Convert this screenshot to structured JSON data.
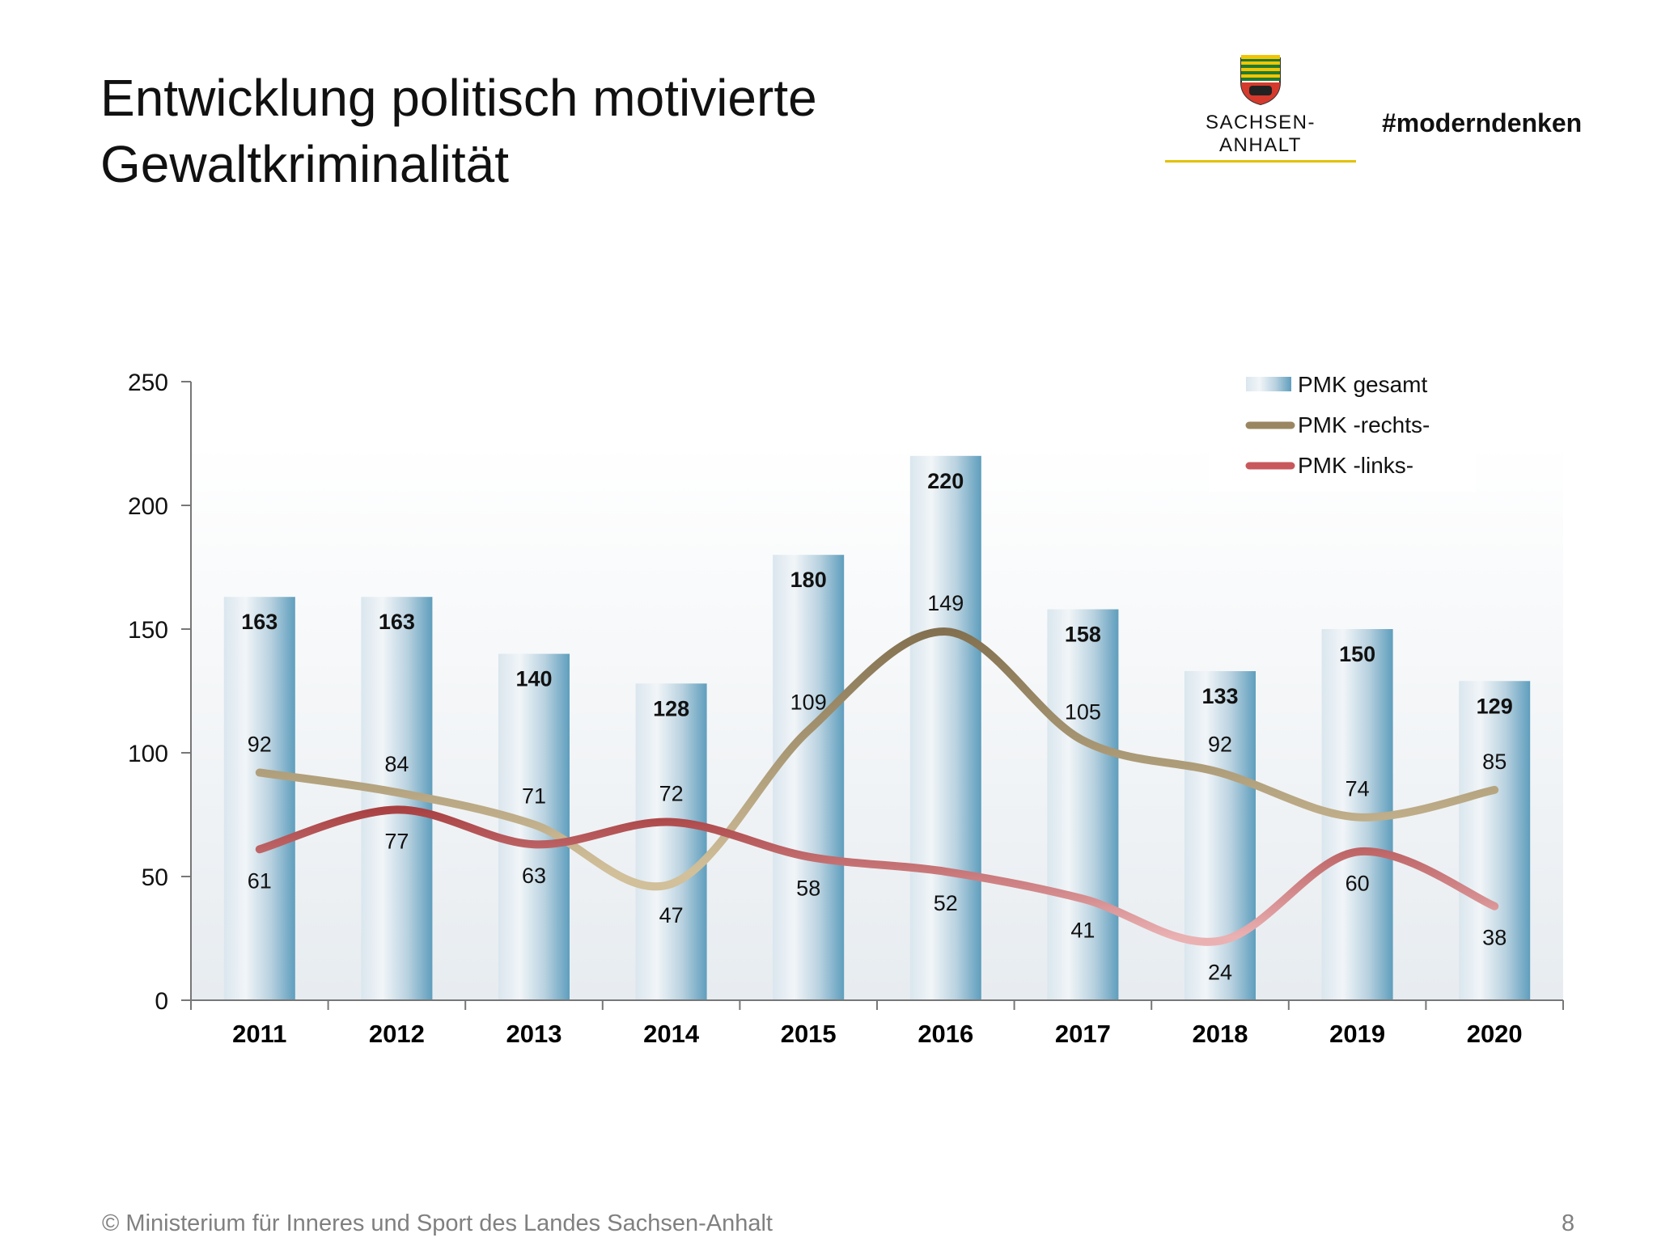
{
  "slide": {
    "title_line1": "Entwicklung politisch motivierte",
    "title_line2": "Gewaltkriminalität",
    "brand_name": "SACHSEN-ANHALT",
    "hashtag": "#moderndenken",
    "footer": "© Ministerium für Inneres und Sport des Landes Sachsen-Anhalt",
    "page_number": "8"
  },
  "chart_data": {
    "type": "bar",
    "categories": [
      "2011",
      "2012",
      "2013",
      "2014",
      "2015",
      "2016",
      "2017",
      "2018",
      "2019",
      "2020"
    ],
    "series": [
      {
        "name": "PMK gesamt",
        "type": "bar",
        "values": [
          163,
          163,
          140,
          128,
          180,
          220,
          158,
          133,
          150,
          129
        ]
      },
      {
        "name": "PMK -rechts-",
        "type": "line",
        "values": [
          92,
          84,
          71,
          47,
          109,
          149,
          105,
          92,
          74,
          85
        ]
      },
      {
        "name": "PMK -links-",
        "type": "line",
        "values": [
          61,
          77,
          63,
          72,
          58,
          52,
          41,
          24,
          60,
          38
        ]
      }
    ],
    "yticks": [
      "0",
      "50",
      "100",
      "150",
      "200",
      "250"
    ],
    "ylim": [
      0,
      250
    ],
    "legend_position": "top-right",
    "colors": {
      "bar_light": "#eef2f5",
      "bar_dark": "#5f9ebd",
      "rechts_light": "#d1c09a",
      "rechts_dark": "#7d6b4b",
      "links_light": "#eab1b3",
      "links_dark": "#a4393b"
    }
  }
}
